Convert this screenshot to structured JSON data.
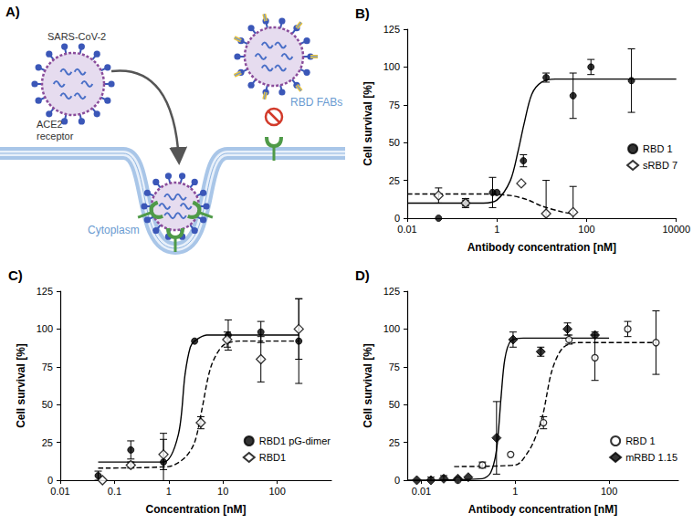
{
  "diagram": {
    "panel_label": "A)",
    "virus_label": "SARS-CoV-2",
    "receptor_label": "ACE2 receptor",
    "cytoplasm_label": "Cytoplasm",
    "antibody_label": "RBD FABs"
  },
  "chart_data": [
    {
      "type": "scatter",
      "title": "B)",
      "x_label": "Antibody concentration [nM]",
      "y_label": "Cell survival [%]",
      "log": "x",
      "xlim": [
        0.01,
        10000
      ],
      "xticks": [
        0.01,
        1,
        100,
        10000
      ],
      "ylim": [
        0,
        125
      ],
      "yticks": [
        0,
        25,
        50,
        75,
        100,
        125
      ],
      "grid": false,
      "legend": "right",
      "series": [
        {
          "name": "RBD 1",
          "color": "#000000",
          "marker": "filled_circle",
          "line_style": "solid",
          "x": [
            0.05,
            0.2,
            0.8,
            1,
            3.9,
            12.5,
            50,
            125,
            1000
          ],
          "values": [
            0,
            10,
            17,
            17,
            38,
            93,
            81,
            100,
            91
          ],
          "errors": [
            null,
            2,
            10,
            null,
            4,
            3,
            15,
            5,
            21
          ],
          "fit_x": [
            0.01,
            0.5,
            1,
            2,
            3,
            4,
            6,
            10,
            20,
            10000
          ],
          "fit_values": [
            10,
            10,
            12,
            25,
            45,
            62,
            82,
            90,
            92,
            92
          ]
        },
        {
          "name": "sRBD 7",
          "color": "#000000",
          "marker": "open_diamond",
          "line_style": "dashed",
          "x": [
            0.05,
            0.2,
            3.5,
            12.5,
            50
          ],
          "values": [
            15,
            10,
            23,
            3,
            4
          ],
          "errors": [
            5,
            3,
            null,
            22,
            17
          ],
          "fit_x": [
            0.01,
            0.5,
            2,
            5,
            10,
            30,
            50
          ],
          "fit_values": [
            16,
            16,
            15,
            12,
            8,
            4,
            3
          ]
        }
      ]
    },
    {
      "type": "scatter",
      "title": "C)",
      "x_label": "Concentration [nM]",
      "y_label": "Cell survival [%]",
      "log": "x",
      "xlim": [
        0.01,
        1000
      ],
      "xticks": [
        0.01,
        0.1,
        1,
        10,
        100
      ],
      "ylim": [
        0,
        125
      ],
      "yticks": [
        0,
        25,
        50,
        75,
        100,
        125
      ],
      "grid": false,
      "legend": "lower right",
      "series": [
        {
          "name": "RBD1 pG-dimer",
          "color": "#000000",
          "marker": "filled_circle",
          "line_style": "solid",
          "x": [
            0.05,
            0.2,
            0.8,
            3,
            12.5,
            50,
            250
          ],
          "values": [
            3,
            20,
            12,
            92,
            96,
            98,
            92
          ],
          "errors": [
            3,
            6,
            19,
            null,
            10,
            7,
            28
          ],
          "fit_x": [
            0.05,
            0.8,
            1.5,
            2,
            2.5,
            3,
            5,
            250
          ],
          "fit_values": [
            12,
            12,
            30,
            70,
            88,
            92,
            96,
            96
          ]
        },
        {
          "name": "RBD1",
          "color": "#000000",
          "marker": "open_diamond",
          "line_style": "dashed",
          "x": [
            0.06,
            0.2,
            0.8,
            3.9,
            12,
            50,
            250
          ],
          "values": [
            0,
            10,
            17,
            38,
            93,
            80,
            100
          ],
          "errors": [
            null,
            2,
            10,
            4,
            5,
            15,
            20
          ],
          "fit_x": [
            0.05,
            1,
            2,
            3,
            4,
            6,
            10,
            20,
            250
          ],
          "fit_values": [
            8,
            9,
            15,
            25,
            45,
            75,
            89,
            92,
            92
          ]
        }
      ]
    },
    {
      "type": "scatter",
      "title": "D)",
      "x_label": "Antibody concentration [nM]",
      "y_label": "Cell survival [%]",
      "log": "x",
      "xlim": [
        0.005,
        3000
      ],
      "xticks": [
        0.01,
        1,
        100
      ],
      "ylim": [
        0,
        125
      ],
      "yticks": [
        0,
        25,
        50,
        75,
        100,
        125
      ],
      "grid": false,
      "legend": "lower right",
      "series": [
        {
          "name": "RBD 1",
          "color": "#000000",
          "marker": "open_circle",
          "line_style": "dashed",
          "x": [
            0.06,
            0.2,
            0.8,
            4,
            14,
            50,
            250,
            1000
          ],
          "values": [
            0,
            10,
            17,
            38,
            93,
            81,
            100,
            91
          ],
          "errors": [
            null,
            2,
            null,
            4,
            3,
            15,
            5,
            21
          ],
          "fit_x": [
            0.05,
            1,
            2,
            3,
            4,
            6,
            10,
            20,
            1000
          ],
          "fit_values": [
            9,
            10,
            20,
            32,
            45,
            72,
            87,
            91,
            91
          ]
        },
        {
          "name": "mRBD 1.15",
          "color": "#000000",
          "marker": "filled_diamond",
          "line_style": "solid",
          "x": [
            0.008,
            0.016,
            0.03,
            0.06,
            0.1,
            0.4,
            0.9,
            3.5,
            13,
            50
          ],
          "values": [
            0,
            0,
            1,
            1,
            2,
            28,
            93,
            85,
            100,
            96
          ],
          "errors": [
            null,
            2,
            2,
            null,
            null,
            24,
            5,
            3,
            4,
            2
          ],
          "fit_x": [
            0.005,
            0.2,
            0.3,
            0.4,
            0.5,
            0.6,
            0.8,
            1.5,
            100
          ],
          "fit_values": [
            0,
            1,
            5,
            20,
            55,
            80,
            92,
            94,
            94
          ]
        }
      ]
    }
  ]
}
